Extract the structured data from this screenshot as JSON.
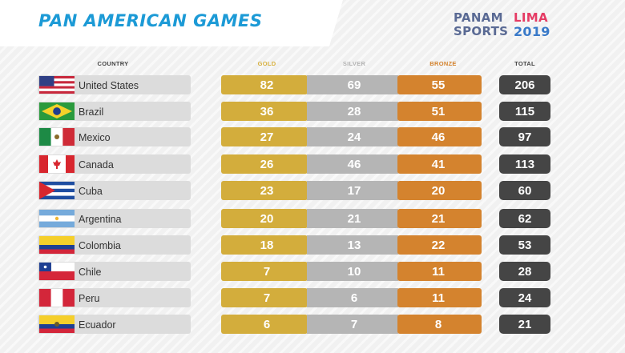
{
  "header": {
    "title": "PAN AMERICAN GAMES",
    "title_color": "#1c9ad6",
    "logo_left": [
      "PANAM",
      "SPORTS"
    ],
    "logo_right": [
      "LIMA",
      "2019"
    ]
  },
  "chart_data": {
    "type": "table",
    "columns": [
      "COUNTRY",
      "GOLD",
      "SILVER",
      "BRONZE",
      "TOTAL"
    ],
    "column_colors": {
      "gold": "#d3ad3c",
      "silver": "#b5b5b5",
      "bronze": "#d4832e",
      "total": "#454545",
      "country": "#dcdcdc",
      "gold_header": "#d8b13f",
      "silver_header": "#b3b3b3",
      "bronze_header": "#d4832e",
      "plain_header": "#444444"
    },
    "rows": [
      {
        "country": "United States",
        "flag": "flag-usa",
        "gold": 82,
        "silver": 69,
        "bronze": 55,
        "total": 206
      },
      {
        "country": "Brazil",
        "flag": "flag-brazil",
        "gold": 36,
        "silver": 28,
        "bronze": 51,
        "total": 115
      },
      {
        "country": "Mexico",
        "flag": "flag-mexico",
        "gold": 27,
        "silver": 24,
        "bronze": 46,
        "total": 97
      },
      {
        "country": "Canada",
        "flag": "flag-canada",
        "gold": 26,
        "silver": 46,
        "bronze": 41,
        "total": 113
      },
      {
        "country": "Cuba",
        "flag": "flag-cuba",
        "gold": 23,
        "silver": 17,
        "bronze": 20,
        "total": 60
      },
      {
        "country": "Argentina",
        "flag": "flag-argentina",
        "gold": 20,
        "silver": 21,
        "bronze": 21,
        "total": 62
      },
      {
        "country": "Colombia",
        "flag": "flag-colombia",
        "gold": 18,
        "silver": 13,
        "bronze": 22,
        "total": 53
      },
      {
        "country": "Chile",
        "flag": "flag-chile",
        "gold": 7,
        "silver": 10,
        "bronze": 11,
        "total": 28
      },
      {
        "country": "Peru",
        "flag": "flag-peru",
        "gold": 7,
        "silver": 6,
        "bronze": 11,
        "total": 24
      },
      {
        "country": "Ecuador",
        "flag": "flag-ecuador",
        "gold": 6,
        "silver": 7,
        "bronze": 8,
        "total": 21
      }
    ]
  }
}
